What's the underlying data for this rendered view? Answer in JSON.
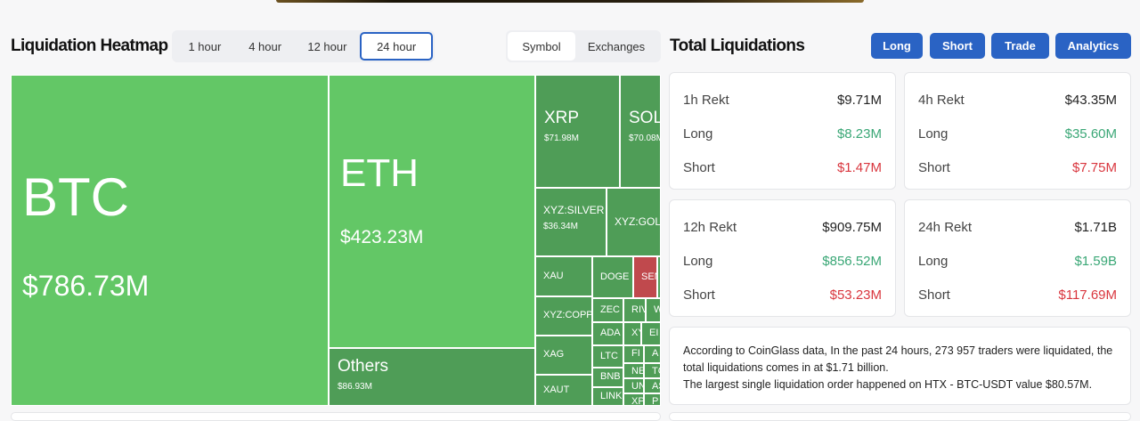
{
  "heatmap": {
    "title": "Liquidation Heatmap",
    "timeframes": [
      "1 hour",
      "4 hour",
      "12 hour",
      "24 hour"
    ],
    "active_timeframe": "24 hour",
    "views": [
      "Symbol",
      "Exchanges"
    ],
    "active_view": "Symbol",
    "colors": {
      "light_green": "#63c766",
      "dark_green": "#4f9d57",
      "red": "#c0494d"
    },
    "tiles": [
      {
        "symbol": "BTC",
        "value": "$786.73M",
        "color": "light_green"
      },
      {
        "symbol": "ETH",
        "value": "$423.23M",
        "color": "light_green"
      },
      {
        "symbol": "Others",
        "value": "$86.93M",
        "color": "dark_green"
      },
      {
        "symbol": "XRP",
        "value": "$71.98M",
        "color": "dark_green"
      },
      {
        "symbol": "SOL",
        "value": "$70.08M",
        "color": "dark_green"
      },
      {
        "symbol": "XYZ:SILVER",
        "value": "$36.34M",
        "color": "dark_green"
      },
      {
        "symbol": "XYZ:GOLD",
        "value": "",
        "color": "dark_green"
      },
      {
        "symbol": "XAU",
        "value": "",
        "color": "dark_green"
      },
      {
        "symbol": "DOGE",
        "value": "",
        "color": "dark_green"
      },
      {
        "symbol": "SEN",
        "value": "",
        "color": "red"
      },
      {
        "symbol": "",
        "value": "",
        "color": "dark_green"
      },
      {
        "symbol": "XYZ:COPPER",
        "value": "",
        "color": "dark_green"
      },
      {
        "symbol": "XAG",
        "value": "",
        "color": "dark_green"
      },
      {
        "symbol": "XAUT",
        "value": "",
        "color": "dark_green"
      },
      {
        "symbol": "ZEC",
        "value": "",
        "color": "dark_green"
      },
      {
        "symbol": "ADA",
        "value": "",
        "color": "dark_green"
      },
      {
        "symbol": "LTC",
        "value": "",
        "color": "dark_green"
      },
      {
        "symbol": "BNB",
        "value": "",
        "color": "dark_green"
      },
      {
        "symbol": "LINK",
        "value": "",
        "color": "dark_green"
      },
      {
        "symbol": "RIV",
        "value": "",
        "color": "dark_green"
      },
      {
        "symbol": "W",
        "value": "",
        "color": "dark_green"
      },
      {
        "symbol": "XY",
        "value": "",
        "color": "dark_green"
      },
      {
        "symbol": "EI",
        "value": "",
        "color": "dark_green"
      },
      {
        "symbol": "FI",
        "value": "",
        "color": "dark_green"
      },
      {
        "symbol": "A",
        "value": "",
        "color": "dark_green"
      },
      {
        "symbol": "NE",
        "value": "",
        "color": "dark_green"
      },
      {
        "symbol": "UN",
        "value": "",
        "color": "dark_green"
      },
      {
        "symbol": "XP",
        "value": "",
        "color": "dark_green"
      },
      {
        "symbol": "TC",
        "value": "",
        "color": "dark_green"
      },
      {
        "symbol": "AS",
        "value": "",
        "color": "dark_green"
      },
      {
        "symbol": "P",
        "value": "",
        "color": "dark_green"
      }
    ]
  },
  "totals": {
    "title": "Total Liquidations",
    "buttons": [
      "Long",
      "Short",
      "Trade",
      "Analytics"
    ],
    "accent": "#2a63c4",
    "cards": [
      {
        "label": "1h Rekt",
        "total": "$9.71M",
        "long_label": "Long",
        "long": "$8.23M",
        "short_label": "Short",
        "short": "$1.47M"
      },
      {
        "label": "4h Rekt",
        "total": "$43.35M",
        "long_label": "Long",
        "long": "$35.60M",
        "short_label": "Short",
        "short": "$7.75M"
      },
      {
        "label": "12h Rekt",
        "total": "$909.75M",
        "long_label": "Long",
        "long": "$856.52M",
        "short_label": "Short",
        "short": "$53.23M"
      },
      {
        "label": "24h Rekt",
        "total": "$1.71B",
        "long_label": "Long",
        "long": "$1.59B",
        "short_label": "Short",
        "short": "$117.69M"
      }
    ],
    "summary_line1": "According to CoinGlass data, In the past 24 hours, 273 957 traders were liquidated, the total liquidations comes in at $1.71 billion.",
    "summary_line2": "The largest single liquidation order happened on HTX - BTC-USDT value $80.57M."
  }
}
